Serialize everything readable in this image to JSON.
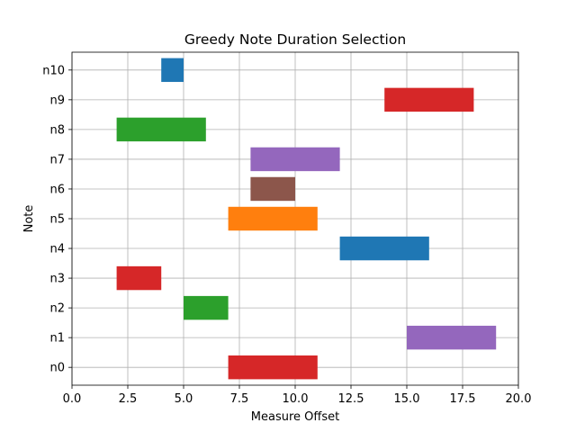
{
  "chart_data": {
    "type": "bar",
    "orientation": "horizontal",
    "title": "Greedy Note Duration Selection",
    "xlabel": "Measure Offset",
    "ylabel": "Note",
    "xlim": [
      0,
      20
    ],
    "x_ticks": [
      0,
      2.5,
      5,
      7.5,
      10,
      12.5,
      15,
      17.5,
      20
    ],
    "x_tick_labels": [
      "0.0",
      "2.5",
      "5.0",
      "7.5",
      "10.0",
      "12.5",
      "15.0",
      "17.5",
      "20.0"
    ],
    "categories": [
      "n0",
      "n1",
      "n2",
      "n3",
      "n4",
      "n5",
      "n6",
      "n7",
      "n8",
      "n9",
      "n10"
    ],
    "grid": true,
    "bars": [
      {
        "note": "n0",
        "start": 7,
        "duration": 4,
        "color": "#d62728"
      },
      {
        "note": "n1",
        "start": 15,
        "duration": 4,
        "color": "#9467bd"
      },
      {
        "note": "n2",
        "start": 5,
        "duration": 2,
        "color": "#2ca02c"
      },
      {
        "note": "n3",
        "start": 2,
        "duration": 2,
        "color": "#d62728"
      },
      {
        "note": "n4",
        "start": 12,
        "duration": 4,
        "color": "#1f77b4"
      },
      {
        "note": "n5",
        "start": 7,
        "duration": 4,
        "color": "#ff7f0e"
      },
      {
        "note": "n6",
        "start": 8,
        "duration": 2,
        "color": "#8c564b"
      },
      {
        "note": "n7",
        "start": 8,
        "duration": 4,
        "color": "#9467bd"
      },
      {
        "note": "n8",
        "start": 2,
        "duration": 4,
        "color": "#2ca02c"
      },
      {
        "note": "n9",
        "start": 14,
        "duration": 4,
        "color": "#d62728"
      },
      {
        "note": "n10",
        "start": 4,
        "duration": 1,
        "color": "#1f77b4"
      }
    ]
  }
}
